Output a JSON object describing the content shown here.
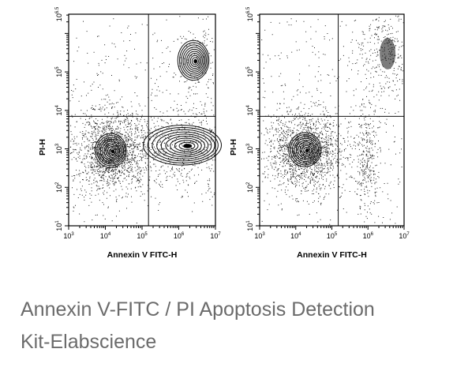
{
  "chart_data": [
    {
      "type": "scatter",
      "xlabel": "Annexin V FITC-H",
      "ylabel": "PI-H",
      "x_scale": "log",
      "y_scale": "log",
      "xlim": [
        1000,
        10000000
      ],
      "ylim": [
        10,
        3162278
      ],
      "x_ticks": [
        {
          "value": 1000,
          "base": "10",
          "exp": "3"
        },
        {
          "value": 10000,
          "base": "10",
          "exp": "4"
        },
        {
          "value": 100000,
          "base": "10",
          "exp": "5"
        },
        {
          "value": 1000000,
          "base": "10",
          "exp": "6"
        },
        {
          "value": 10000000,
          "base": "10",
          "exp": "7"
        }
      ],
      "y_ticks": [
        {
          "value": 10,
          "base": "10",
          "exp": "1"
        },
        {
          "value": 100,
          "base": "10",
          "exp": "2"
        },
        {
          "value": 1000,
          "base": "10",
          "exp": "3"
        },
        {
          "value": 10000,
          "base": "10",
          "exp": "4"
        },
        {
          "value": 100000,
          "base": "10",
          "exp": "5"
        },
        {
          "value": 3162278,
          "base": "10",
          "exp": "6.5"
        }
      ],
      "quadrant_gates": {
        "x": 150000,
        "y": 7000
      },
      "populations": [
        {
          "center": [
            14000,
            900
          ],
          "spread": [
            2.2,
            2.4
          ],
          "weight": 0.55,
          "style": "contour"
        },
        {
          "center": [
            1250000,
            1250
          ],
          "spread": [
            5.5,
            2.8
          ],
          "weight": 0.3,
          "style": "contour"
        },
        {
          "center": [
            2500000,
            200000
          ],
          "spread": [
            2.2,
            2.8
          ],
          "weight": 0.05,
          "style": "contour"
        }
      ],
      "grid": false
    },
    {
      "type": "scatter",
      "xlabel": "Annexin V FITC-H",
      "ylabel": "PI-H",
      "x_scale": "log",
      "y_scale": "log",
      "xlim": [
        1000,
        10000000
      ],
      "ylim": [
        10,
        3162278
      ],
      "x_ticks": [
        {
          "value": 1000,
          "base": "10",
          "exp": "3"
        },
        {
          "value": 10000,
          "base": "10",
          "exp": "4"
        },
        {
          "value": 100000,
          "base": "10",
          "exp": "5"
        },
        {
          "value": 1000000,
          "base": "10",
          "exp": "6"
        },
        {
          "value": 10000000,
          "base": "10",
          "exp": "7"
        }
      ],
      "y_ticks": [
        {
          "value": 10,
          "base": "10",
          "exp": "1"
        },
        {
          "value": 100,
          "base": "10",
          "exp": "2"
        },
        {
          "value": 1000,
          "base": "10",
          "exp": "3"
        },
        {
          "value": 10000,
          "base": "10",
          "exp": "4"
        },
        {
          "value": 100000,
          "base": "10",
          "exp": "5"
        },
        {
          "value": 3162278,
          "base": "10",
          "exp": "6.5"
        }
      ],
      "quadrant_gates": {
        "x": 150000,
        "y": 7000
      },
      "populations": [
        {
          "center": [
            18000,
            950
          ],
          "spread": [
            2.3,
            2.4
          ],
          "weight": 0.6,
          "style": "contour"
        },
        {
          "center": [
            900000,
            700
          ],
          "spread": [
            1.6,
            3.8
          ],
          "weight": 0.12,
          "style": "dots"
        },
        {
          "center": [
            3500000,
            300000
          ],
          "spread": [
            2.0,
            3.2
          ],
          "weight": 0.14,
          "style": "dense-dots"
        }
      ],
      "grid": false
    }
  ],
  "caption": {
    "line1": "Annexin V-FITC / PI Apoptosis Detection",
    "line2": "Kit-Elabscience"
  }
}
